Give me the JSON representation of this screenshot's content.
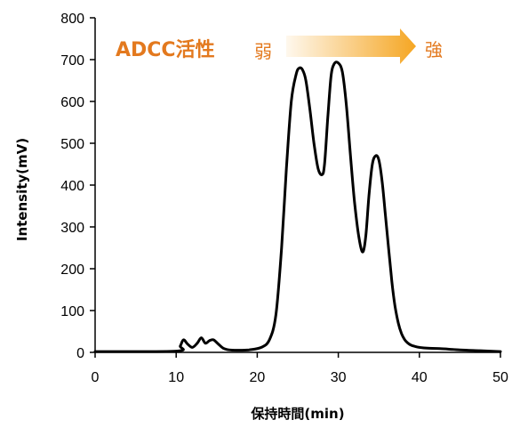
{
  "chart_data": {
    "type": "line",
    "title": "",
    "xlabel": "保持時間(min)",
    "ylabel": "Intensity(mV)",
    "xlim": [
      0,
      50
    ],
    "ylim": [
      0,
      800
    ],
    "xticks": [
      0,
      10,
      20,
      30,
      40,
      50
    ],
    "yticks": [
      0,
      100,
      200,
      300,
      400,
      500,
      600,
      700,
      800
    ],
    "grid": false,
    "legend": "none",
    "series": [
      {
        "color": "#000000",
        "x": [
          0,
          10,
          10.5,
          10.9,
          11.4,
          12.0,
          12.6,
          13.1,
          13.6,
          14.1,
          14.6,
          15.2,
          15.8,
          16.5,
          17.5,
          19.0,
          20.5,
          21.5,
          22.3,
          23.0,
          23.6,
          24.2,
          24.8,
          25.2,
          25.6,
          26.0,
          26.5,
          27.0,
          27.5,
          28.0,
          28.3,
          28.7,
          29.1,
          29.5,
          30.0,
          30.5,
          31.0,
          31.5,
          32.0,
          32.5,
          33.0,
          33.4,
          33.8,
          34.2,
          34.6,
          35.0,
          35.4,
          35.8,
          36.2,
          36.6,
          37.0,
          37.4,
          37.8,
          38.2,
          38.6,
          39.0,
          39.5,
          40.0,
          41.0,
          42.5,
          45.0,
          47.5,
          50.0
        ],
        "y": [
          2,
          3,
          15,
          30,
          20,
          12,
          22,
          35,
          22,
          28,
          30,
          20,
          10,
          6,
          5,
          6,
          12,
          30,
          90,
          250,
          440,
          600,
          665,
          680,
          675,
          650,
          580,
          500,
          440,
          425,
          450,
          560,
          660,
          690,
          692,
          670,
          590,
          470,
          360,
          280,
          240,
          280,
          380,
          450,
          470,
          460,
          410,
          330,
          250,
          170,
          110,
          70,
          45,
          30,
          22,
          17,
          14,
          12,
          10,
          9,
          6,
          4,
          2
        ]
      }
    ],
    "annotations": {
      "label": "ADCC活性",
      "weak": "弱",
      "strong": "強",
      "label_color": "#E3791E",
      "arrow_color": "#F5A623"
    }
  }
}
